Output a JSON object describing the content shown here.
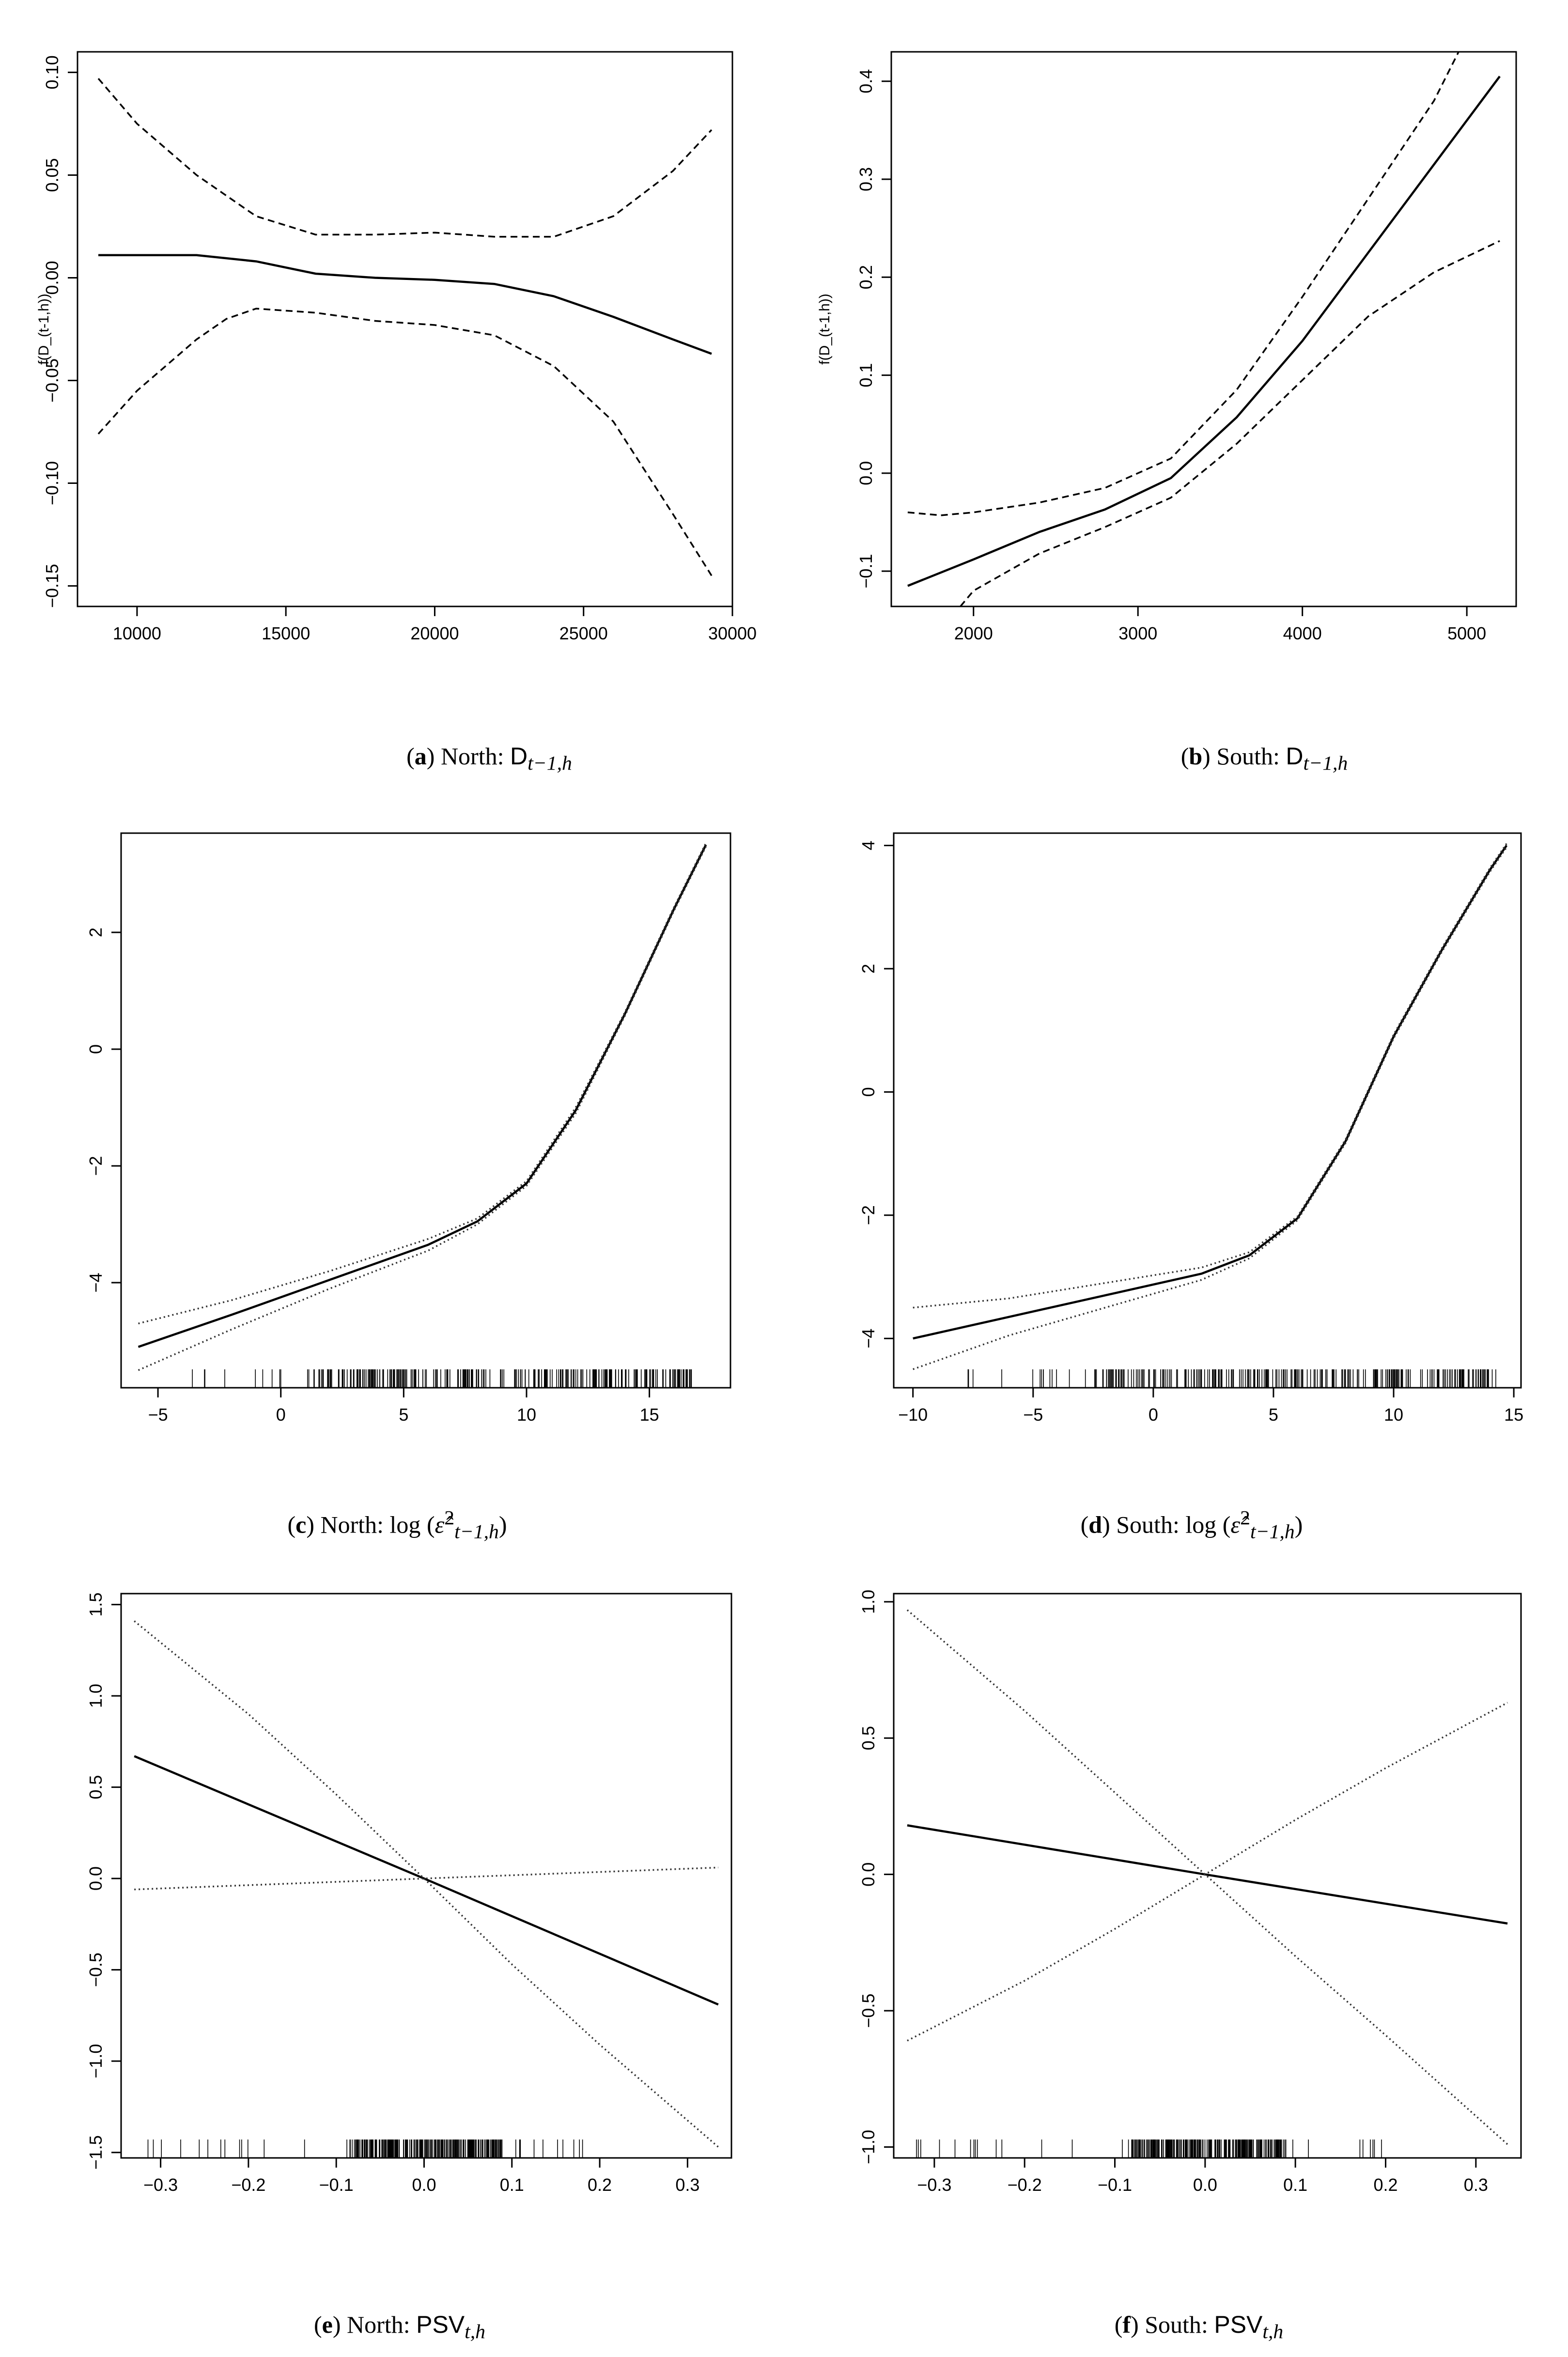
{
  "figure": {
    "captions": [
      {
        "label": "a",
        "region": "North",
        "variable": "D",
        "subscript": "t−1,h"
      },
      {
        "label": "b",
        "region": "South",
        "variable": "D",
        "subscript": "t−1,h"
      },
      {
        "label": "c",
        "region": "North",
        "variable": "log",
        "subscript": "t−1,h"
      },
      {
        "label": "d",
        "region": "South",
        "variable": "log",
        "subscript": "t−1,h"
      },
      {
        "label": "e",
        "region": "North",
        "variable": "PSV",
        "subscript": "t,h"
      },
      {
        "label": "f",
        "region": "South",
        "variable": "PSV",
        "subscript": "t,h"
      }
    ]
  },
  "chart_data": [
    {
      "type": "line",
      "id": "a",
      "ylabel": "f(D_(t-1,h))",
      "xlim": [
        8000,
        30000
      ],
      "ylim": [
        -0.16,
        0.11
      ],
      "xticks": [
        10000,
        15000,
        20000,
        25000,
        30000
      ],
      "xtick_labels": [
        "10000",
        "15000",
        "20000",
        "25000",
        "30000"
      ],
      "yticks": [
        -0.15,
        -0.1,
        -0.05,
        0.0,
        0.05,
        0.1
      ],
      "ytick_labels": [
        "−0.15",
        "−0.10",
        "−0.05",
        "0.00",
        "0.05",
        "0.10"
      ],
      "series": [
        {
          "name": "estimate",
          "style": "solid",
          "x": [
            8700,
            10000,
            12000,
            14000,
            16000,
            18000,
            20000,
            22000,
            24000,
            26000,
            28000,
            29300
          ],
          "y": [
            0.011,
            0.011,
            0.011,
            0.008,
            0.002,
            0.0,
            -0.001,
            -0.003,
            -0.009,
            -0.019,
            -0.03,
            -0.037
          ]
        },
        {
          "name": "upper",
          "style": "dashed",
          "x": [
            8700,
            10000,
            12000,
            14000,
            16000,
            18000,
            20000,
            22000,
            24000,
            26000,
            28000,
            29300
          ],
          "y": [
            0.097,
            0.075,
            0.05,
            0.03,
            0.021,
            0.021,
            0.022,
            0.02,
            0.02,
            0.03,
            0.052,
            0.072
          ]
        },
        {
          "name": "lower",
          "style": "dashed",
          "x": [
            8700,
            10000,
            12000,
            13000,
            14000,
            16000,
            18000,
            20000,
            22000,
            24000,
            26000,
            28000,
            29300
          ],
          "y": [
            -0.076,
            -0.055,
            -0.03,
            -0.02,
            -0.015,
            -0.017,
            -0.021,
            -0.023,
            -0.028,
            -0.043,
            -0.07,
            -0.115,
            -0.145
          ]
        }
      ]
    },
    {
      "type": "line",
      "id": "b",
      "ylabel": "f(D_(t-1,h))",
      "xlim": [
        1500,
        5300
      ],
      "ylim": [
        -0.136,
        0.43
      ],
      "xticks": [
        2000,
        3000,
        4000,
        5000
      ],
      "xtick_labels": [
        "2000",
        "3000",
        "4000",
        "5000"
      ],
      "yticks": [
        -0.1,
        0.0,
        0.1,
        0.2,
        0.3,
        0.4
      ],
      "ytick_labels": [
        "−0.1",
        "0.0",
        "0.1",
        "0.2",
        "0.3",
        "0.4"
      ],
      "series": [
        {
          "name": "estimate",
          "style": "solid",
          "x": [
            1600,
            2000,
            2400,
            2800,
            3200,
            3600,
            4000,
            4400,
            4800,
            5200
          ],
          "y": [
            -0.115,
            -0.088,
            -0.06,
            -0.037,
            -0.005,
            0.057,
            0.135,
            0.225,
            0.315,
            0.405
          ]
        },
        {
          "name": "upper",
          "style": "dashed",
          "x": [
            1600,
            1800,
            2000,
            2400,
            2800,
            3200,
            3600,
            4000,
            4400,
            4800,
            4950
          ],
          "y": [
            -0.04,
            -0.043,
            -0.04,
            -0.03,
            -0.015,
            0.015,
            0.085,
            0.18,
            0.28,
            0.38,
            0.43
          ]
        },
        {
          "name": "lower",
          "style": "dashed",
          "x": [
            1920,
            2000,
            2400,
            2800,
            3200,
            3600,
            4000,
            4400,
            4800,
            5200
          ],
          "y": [
            -0.136,
            -0.12,
            -0.082,
            -0.055,
            -0.025,
            0.03,
            0.095,
            0.16,
            0.205,
            0.237
          ]
        }
      ]
    },
    {
      "type": "line",
      "id": "c",
      "ylabel": "",
      "xlim": [
        -6.5,
        18.3
      ],
      "ylim": [
        -5.8,
        3.7
      ],
      "xticks": [
        -5,
        0,
        5,
        10,
        15
      ],
      "xtick_labels": [
        "−5",
        "0",
        "5",
        "10",
        "15"
      ],
      "yticks": [
        -4,
        -2,
        0,
        2
      ],
      "ytick_labels": [
        "−4",
        "−2",
        "0",
        "2"
      ],
      "rug": {
        "from": -3.8,
        "to": 17.0,
        "dense_from": 1.5,
        "dense_to": 16.8
      },
      "series": [
        {
          "name": "estimate",
          "style": "solid",
          "x": [
            -5.8,
            -2,
            2,
            6,
            8,
            10,
            12,
            14,
            16,
            17.3
          ],
          "y": [
            -5.1,
            -4.55,
            -3.95,
            -3.35,
            -2.95,
            -2.3,
            -1.05,
            0.6,
            2.4,
            3.5
          ]
        },
        {
          "name": "upper",
          "style": "dotted",
          "x": [
            -5.8,
            -2,
            2,
            6,
            8,
            10,
            12,
            14,
            16,
            17.3
          ],
          "y": [
            -4.7,
            -4.3,
            -3.8,
            -3.25,
            -2.9,
            -2.26,
            -1.0,
            0.63,
            2.43,
            3.53
          ]
        },
        {
          "name": "lower",
          "style": "dotted",
          "x": [
            -5.8,
            -2,
            2,
            6,
            8,
            10,
            12,
            14,
            16,
            17.3
          ],
          "y": [
            -5.5,
            -4.8,
            -4.1,
            -3.45,
            -3.0,
            -2.34,
            -1.1,
            0.57,
            2.37,
            3.47
          ]
        }
      ]
    },
    {
      "type": "line",
      "id": "d",
      "ylabel": "",
      "xlim": [
        -10.8,
        15.3
      ],
      "ylim": [
        -4.8,
        4.2
      ],
      "xticks": [
        -10,
        -5,
        0,
        5,
        10,
        15
      ],
      "xtick_labels": [
        "−10",
        "−5",
        "0",
        "5",
        "10",
        "15"
      ],
      "yticks": [
        -4,
        -2,
        0,
        2,
        4
      ],
      "ytick_labels": [
        "−4",
        "−2",
        "0",
        "2",
        "4"
      ],
      "rug": {
        "from": -8.2,
        "to": 14.3,
        "dense_from": -2.5,
        "dense_to": 14.2
      },
      "series": [
        {
          "name": "estimate",
          "style": "solid",
          "x": [
            -10,
            -6,
            -2,
            2,
            4,
            6,
            8,
            10,
            12,
            14,
            14.7
          ],
          "y": [
            -4.0,
            -3.65,
            -3.3,
            -2.95,
            -2.65,
            -2.05,
            -0.8,
            0.9,
            2.3,
            3.6,
            4.0
          ]
        },
        {
          "name": "upper",
          "style": "dotted",
          "x": [
            -10,
            -6,
            -2,
            2,
            4,
            6,
            8,
            10,
            12,
            14,
            14.7
          ],
          "y": [
            -3.5,
            -3.35,
            -3.1,
            -2.85,
            -2.6,
            -2.02,
            -0.77,
            0.93,
            2.33,
            3.63,
            4.03
          ]
        },
        {
          "name": "lower",
          "style": "dotted",
          "x": [
            -10,
            -6,
            -2,
            2,
            4,
            6,
            8,
            10,
            12,
            14,
            14.7
          ],
          "y": [
            -4.5,
            -3.95,
            -3.5,
            -3.05,
            -2.7,
            -2.08,
            -0.83,
            0.87,
            2.27,
            3.57,
            3.97
          ]
        }
      ]
    },
    {
      "type": "line",
      "id": "e",
      "ylabel": "",
      "xlim": [
        -0.345,
        0.35
      ],
      "ylim": [
        -1.53,
        1.56
      ],
      "xticks": [
        -0.3,
        -0.2,
        -0.1,
        0.0,
        0.1,
        0.2,
        0.3
      ],
      "xtick_labels": [
        "−0.3",
        "−0.2",
        "−0.1",
        "0.0",
        "0.1",
        "0.2",
        "0.3"
      ],
      "yticks": [
        -1.5,
        -1.0,
        -0.5,
        0.0,
        0.5,
        1.0,
        1.5
      ],
      "ytick_labels": [
        "−1.5",
        "−1.0",
        "−0.5",
        "0.0",
        "0.5",
        "1.0",
        "1.5"
      ],
      "rug": {
        "from": -0.32,
        "to": 0.21,
        "dense_from": -0.085,
        "dense_to": 0.09
      },
      "series": [
        {
          "name": "estimate",
          "style": "solid",
          "x": [
            -0.33,
            0.0,
            0.335
          ],
          "y": [
            0.67,
            0.0,
            -0.69
          ]
        },
        {
          "name": "upper",
          "style": "dotted",
          "x": [
            -0.33,
            0.0,
            0.335
          ],
          "y": [
            -0.06,
            0.0,
            0.06
          ]
        },
        {
          "name": "lower",
          "style": "dotted",
          "x": [
            -0.33,
            -0.2,
            -0.1,
            0.0,
            0.1,
            0.2,
            0.335
          ],
          "y": [
            1.41,
            0.9,
            0.46,
            0.0,
            -0.47,
            -0.91,
            -1.47
          ]
        }
      ]
    },
    {
      "type": "line",
      "id": "f",
      "ylabel": "",
      "xlim": [
        -0.345,
        0.35
      ],
      "ylim": [
        -1.04,
        1.03
      ],
      "xticks": [
        -0.3,
        -0.2,
        -0.1,
        0.0,
        0.1,
        0.2,
        0.3
      ],
      "xtick_labels": [
        "−0.3",
        "−0.2",
        "−0.1",
        "0.0",
        "0.1",
        "0.2",
        "0.3"
      ],
      "yticks": [
        -1.0,
        -0.5,
        0.0,
        0.5,
        1.0
      ],
      "ytick_labels": [
        "−1.0",
        "−0.5",
        "0.0",
        "0.5",
        "1.0"
      ],
      "rug": {
        "from": -0.32,
        "to": 0.21,
        "dense_from": -0.085,
        "dense_to": 0.09
      },
      "series": [
        {
          "name": "estimate",
          "style": "solid",
          "x": [
            -0.33,
            0.0,
            0.335
          ],
          "y": [
            0.18,
            0.0,
            -0.18
          ]
        },
        {
          "name": "upper",
          "style": "dotted",
          "x": [
            -0.33,
            -0.2,
            -0.1,
            0.0,
            0.1,
            0.2,
            0.335
          ],
          "y": [
            -0.61,
            -0.39,
            -0.2,
            0.0,
            0.2,
            0.39,
            0.63
          ]
        },
        {
          "name": "lower",
          "style": "dotted",
          "x": [
            -0.33,
            -0.2,
            -0.1,
            0.0,
            0.1,
            0.2,
            0.335
          ],
          "y": [
            0.97,
            0.6,
            0.3,
            0.0,
            -0.3,
            -0.59,
            -0.99
          ]
        }
      ]
    }
  ]
}
